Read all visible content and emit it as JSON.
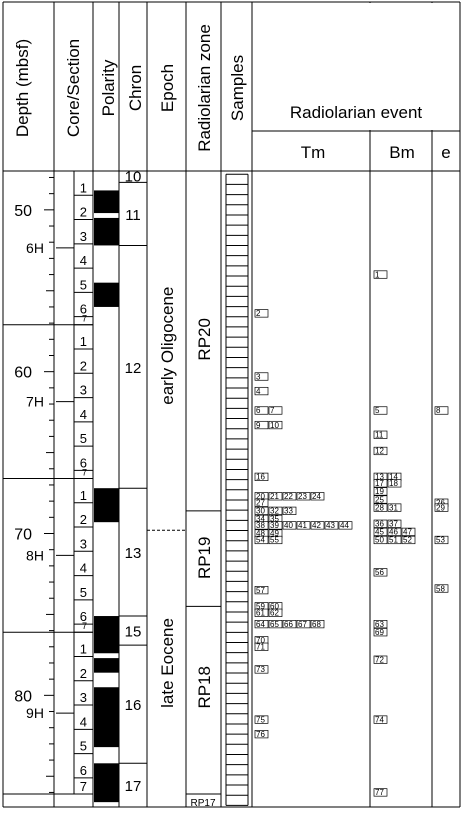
{
  "headers": {
    "depth": "Depth (mbsf)",
    "core": "Core/Section",
    "polarity": "Polarity",
    "chron": "Chron",
    "epoch": "Epoch",
    "zone": "Radiolarian zone",
    "samples": "Samples",
    "event": "Radiolarian event",
    "tm": "Tm",
    "bm": "Bm",
    "e": "e"
  },
  "depth_axis": {
    "min_mbsf": 47.6,
    "max_mbsf": 86.9,
    "ticks": [
      50,
      60,
      70,
      80
    ]
  },
  "cores": [
    {
      "label": "6H",
      "top": 47.6,
      "bottom": 57.1,
      "sections": [
        {
          "label": "1",
          "top": 47.6,
          "bottom": 49.1
        },
        {
          "label": "2",
          "top": 49.1,
          "bottom": 50.6
        },
        {
          "label": "3",
          "top": 50.6,
          "bottom": 52.1
        },
        {
          "label": "4",
          "top": 52.1,
          "bottom": 53.6
        },
        {
          "label": "5",
          "top": 53.6,
          "bottom": 55.1
        },
        {
          "label": "6",
          "top": 55.1,
          "bottom": 56.6
        },
        {
          "label": "7",
          "top": 56.6,
          "bottom": 57.1
        }
      ]
    },
    {
      "label": "7H",
      "top": 57.1,
      "bottom": 66.6,
      "sections": [
        {
          "label": "1",
          "top": 57.1,
          "bottom": 58.6
        },
        {
          "label": "2",
          "top": 58.6,
          "bottom": 60.1
        },
        {
          "label": "3",
          "top": 60.1,
          "bottom": 61.6
        },
        {
          "label": "4",
          "top": 61.6,
          "bottom": 63.1
        },
        {
          "label": "5",
          "top": 63.1,
          "bottom": 64.6
        },
        {
          "label": "6",
          "top": 64.6,
          "bottom": 66.1
        },
        {
          "label": "7",
          "top": 66.1,
          "bottom": 66.6
        }
      ]
    },
    {
      "label": "8H",
      "top": 66.6,
      "bottom": 76.1,
      "sections": [
        {
          "label": "1",
          "top": 66.6,
          "bottom": 68.1
        },
        {
          "label": "2",
          "top": 68.1,
          "bottom": 69.6
        },
        {
          "label": "3",
          "top": 69.6,
          "bottom": 71.1
        },
        {
          "label": "4",
          "top": 71.1,
          "bottom": 72.6
        },
        {
          "label": "5",
          "top": 72.6,
          "bottom": 74.1
        },
        {
          "label": "6",
          "top": 74.1,
          "bottom": 75.6
        },
        {
          "label": "7",
          "top": 75.6,
          "bottom": 76.1
        }
      ]
    },
    {
      "label": "9H",
      "top": 76.1,
      "bottom": 86.1,
      "sections": [
        {
          "label": "1",
          "top": 76.1,
          "bottom": 77.6
        },
        {
          "label": "2",
          "top": 77.6,
          "bottom": 79.1
        },
        {
          "label": "3",
          "top": 79.1,
          "bottom": 80.6
        },
        {
          "label": "4",
          "top": 80.6,
          "bottom": 82.1
        },
        {
          "label": "5",
          "top": 82.1,
          "bottom": 83.6
        },
        {
          "label": "6",
          "top": 83.6,
          "bottom": 85.1
        },
        {
          "label": "7",
          "top": 85.1,
          "bottom": 86.1
        }
      ]
    }
  ],
  "polarity_normal": [
    {
      "top": 48.8,
      "bottom": 50.2
    },
    {
      "top": 50.5,
      "bottom": 52.2
    },
    {
      "top": 54.5,
      "bottom": 56.0
    },
    {
      "top": 67.2,
      "bottom": 69.3
    },
    {
      "top": 75.1,
      "bottom": 77.4
    },
    {
      "top": 77.7,
      "bottom": 78.6
    },
    {
      "top": 79.5,
      "bottom": 83.2
    },
    {
      "top": 84.2,
      "bottom": 86.6
    }
  ],
  "chrons": [
    {
      "label": "10",
      "top": 47.6,
      "bottom": 48.3
    },
    {
      "label": "11",
      "top": 48.3,
      "bottom": 52.2
    },
    {
      "label": "12",
      "top": 52.2,
      "bottom": 67.2
    },
    {
      "label": "13",
      "top": 67.2,
      "bottom": 75.1
    },
    {
      "label": "15",
      "top": 75.1,
      "bottom": 76.9
    },
    {
      "label": "16",
      "top": 76.9,
      "bottom": 84.2
    },
    {
      "label": "17",
      "top": 84.2,
      "bottom": 86.9
    }
  ],
  "epochs": [
    {
      "label": "early Oligocene",
      "top": 47.6,
      "bottom": 69.8
    },
    {
      "label": "late Eocene",
      "top": 69.8,
      "bottom": 86.9
    }
  ],
  "epoch_boundary_dashed": 69.8,
  "zones": [
    {
      "label": "RP20",
      "top": 47.6,
      "bottom": 68.6
    },
    {
      "label": "RP19",
      "top": 68.6,
      "bottom": 74.5
    },
    {
      "label": "RP18",
      "top": 74.5,
      "bottom": 86.1
    },
    {
      "label": "RP17",
      "top": 86.1,
      "bottom": 86.9
    }
  ],
  "samples": {
    "top": 47.8,
    "bottom": 86.8,
    "count": 62
  },
  "events": {
    "tm": [
      {
        "depth": 56.6,
        "ids": [
          "2"
        ]
      },
      {
        "depth": 60.5,
        "ids": [
          "3"
        ]
      },
      {
        "depth": 61.4,
        "ids": [
          "4"
        ]
      },
      {
        "depth": 62.6,
        "ids": [
          "6",
          "7"
        ]
      },
      {
        "depth": 63.5,
        "ids": [
          "9",
          "10"
        ]
      },
      {
        "depth": 66.7,
        "ids": [
          "16"
        ]
      },
      {
        "depth": 67.9,
        "ids": [
          "20",
          "21",
          "22",
          "23",
          "24"
        ]
      },
      {
        "depth": 68.3,
        "ids": [
          "27"
        ]
      },
      {
        "depth": 68.8,
        "ids": [
          "30",
          "32",
          "33"
        ]
      },
      {
        "depth": 69.3,
        "ids": [
          "34",
          "35"
        ]
      },
      {
        "depth": 69.7,
        "ids": [
          "38",
          "39",
          "40",
          "41",
          "42",
          "43",
          "44"
        ]
      },
      {
        "depth": 70.2,
        "ids": [
          "48",
          "49"
        ]
      },
      {
        "depth": 70.6,
        "ids": [
          "54",
          "55"
        ]
      },
      {
        "depth": 73.7,
        "ids": [
          "57"
        ]
      },
      {
        "depth": 74.7,
        "ids": [
          "59",
          "60"
        ]
      },
      {
        "depth": 75.1,
        "ids": [
          "61",
          "62"
        ]
      },
      {
        "depth": 75.8,
        "ids": [
          "64",
          "65",
          "66",
          "67",
          "68"
        ]
      },
      {
        "depth": 76.8,
        "ids": [
          "70"
        ]
      },
      {
        "depth": 77.2,
        "ids": [
          "71"
        ]
      },
      {
        "depth": 78.6,
        "ids": [
          "73"
        ]
      },
      {
        "depth": 81.7,
        "ids": [
          "75"
        ]
      },
      {
        "depth": 82.6,
        "ids": [
          "76"
        ]
      }
    ],
    "bm": [
      {
        "depth": 54.2,
        "ids": [
          "1"
        ]
      },
      {
        "depth": 62.6,
        "ids": [
          "5"
        ]
      },
      {
        "depth": 64.1,
        "ids": [
          "11"
        ]
      },
      {
        "depth": 65.1,
        "ids": [
          "12"
        ]
      },
      {
        "depth": 66.7,
        "ids": [
          "13",
          "14"
        ]
      },
      {
        "depth": 67.1,
        "ids": [
          "17",
          "18"
        ]
      },
      {
        "depth": 67.6,
        "ids": [
          "19"
        ]
      },
      {
        "depth": 68.1,
        "ids": [
          "25"
        ]
      },
      {
        "depth": 68.6,
        "ids": [
          "28",
          "31"
        ]
      },
      {
        "depth": 69.6,
        "ids": [
          "36",
          "37"
        ]
      },
      {
        "depth": 70.1,
        "ids": [
          "45",
          "46",
          "47"
        ]
      },
      {
        "depth": 70.6,
        "ids": [
          "50",
          "51",
          "52"
        ]
      },
      {
        "depth": 72.6,
        "ids": [
          "56"
        ]
      },
      {
        "depth": 75.8,
        "ids": [
          "63"
        ]
      },
      {
        "depth": 76.3,
        "ids": [
          "69"
        ]
      },
      {
        "depth": 78.0,
        "ids": [
          "72"
        ]
      },
      {
        "depth": 81.7,
        "ids": [
          "74"
        ]
      },
      {
        "depth": 86.2,
        "ids": [
          "77"
        ]
      }
    ],
    "e": [
      {
        "depth": 62.6,
        "ids": [
          "8"
        ]
      },
      {
        "depth": 68.3,
        "ids": [
          "26"
        ]
      },
      {
        "depth": 68.6,
        "ids": [
          "29"
        ]
      },
      {
        "depth": 70.6,
        "ids": [
          "53"
        ]
      },
      {
        "depth": 73.6,
        "ids": [
          "58"
        ]
      }
    ]
  }
}
